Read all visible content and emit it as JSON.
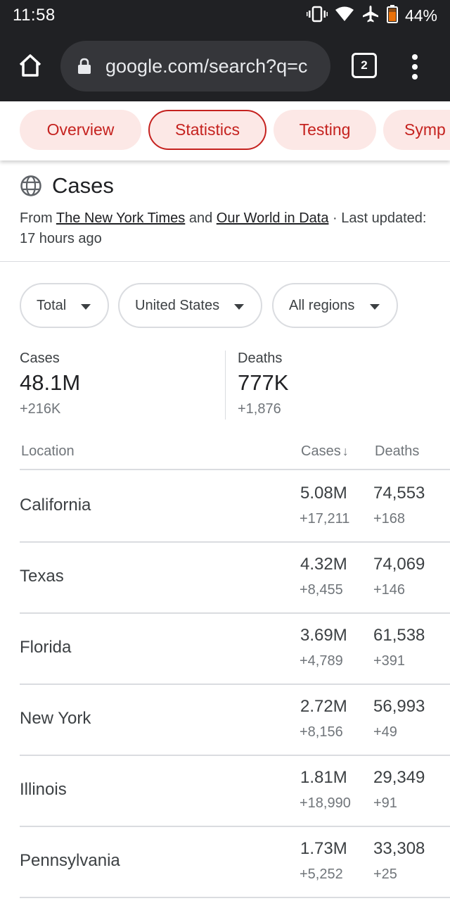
{
  "status_bar": {
    "time": "11:58",
    "battery_percent": "44%",
    "icons": [
      "vibrate-icon",
      "wifi-icon",
      "airplane-mode-icon",
      "battery-icon"
    ]
  },
  "browser": {
    "url": "google.com/search?q=c",
    "tab_count": "2",
    "icons": [
      "home-icon",
      "lock-icon",
      "tab-switcher-icon",
      "more-vert-icon"
    ]
  },
  "chips": [
    "Overview",
    "Statistics",
    "Testing",
    "Symp"
  ],
  "active_chip": "Statistics",
  "cases": {
    "title": "Cases",
    "source_prefix": "From ",
    "source_1": "The New York Times",
    "source_and": " and ",
    "source_2": "Our World in Data",
    "source_suffix": " · Last updated: 17 hours ago"
  },
  "filters": {
    "period": "Total",
    "country": "United States",
    "region": "All regions"
  },
  "totals": {
    "cases_label": "Cases",
    "cases_value": "48.1M",
    "cases_change": "+216K",
    "deaths_label": "Deaths",
    "deaths_value": "777K",
    "deaths_change": "+1,876"
  },
  "table": {
    "headers": {
      "location": "Location",
      "cases": "Cases",
      "deaths": "Deaths"
    },
    "sort_indicator": "↓",
    "rows": [
      {
        "location": "California",
        "cases": "5.08M",
        "cases_change": "+17,211",
        "deaths": "74,553",
        "deaths_change": "+168"
      },
      {
        "location": "Texas",
        "cases": "4.32M",
        "cases_change": "+8,455",
        "deaths": "74,069",
        "deaths_change": "+146"
      },
      {
        "location": "Florida",
        "cases": "3.69M",
        "cases_change": "+4,789",
        "deaths": "61,538",
        "deaths_change": "+391"
      },
      {
        "location": "New York",
        "cases": "2.72M",
        "cases_change": "+8,156",
        "deaths": "56,993",
        "deaths_change": "+49"
      },
      {
        "location": "Illinois",
        "cases": "1.81M",
        "cases_change": "+18,990",
        "deaths": "29,349",
        "deaths_change": "+91"
      },
      {
        "location": "Pennsylvania",
        "cases": "1.73M",
        "cases_change": "+5,252",
        "deaths": "33,308",
        "deaths_change": "+25"
      }
    ]
  },
  "colors": {
    "chrome_dark": "#202124",
    "omnibox": "#35363a",
    "chip_bg": "#fce8e6",
    "chip_text": "#c5221f",
    "divider": "#dadce0",
    "muted_text": "#70757a"
  }
}
